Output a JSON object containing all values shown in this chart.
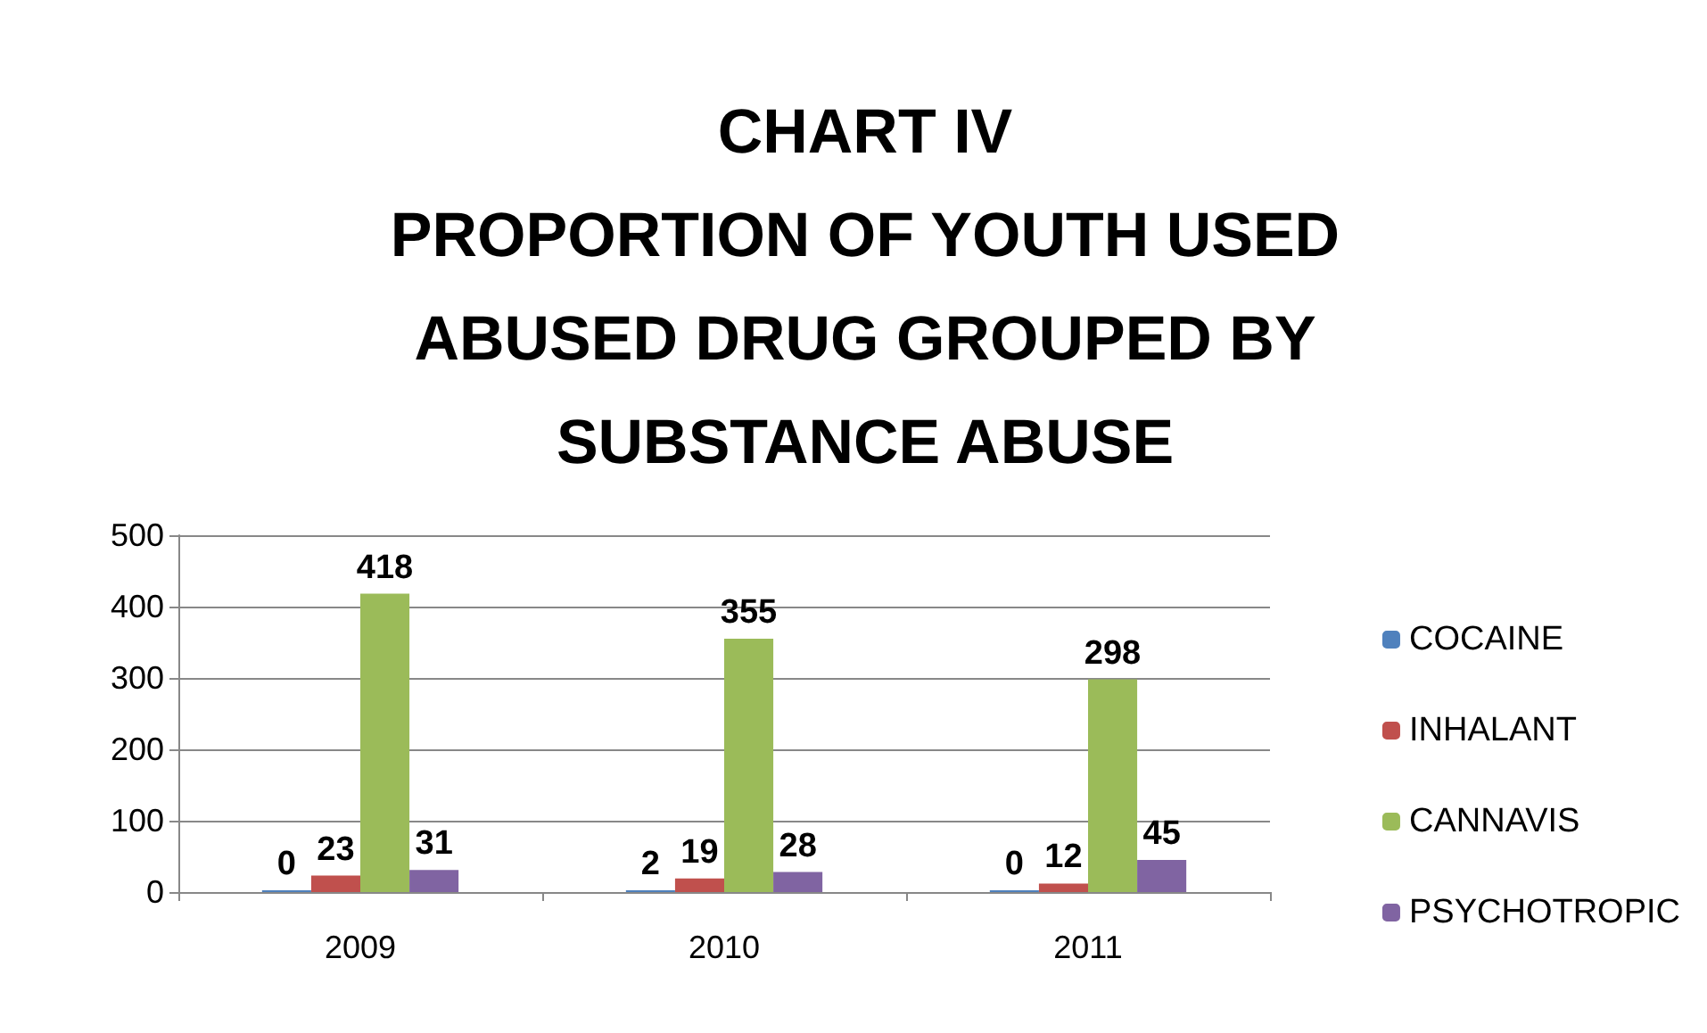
{
  "chart_data": {
    "type": "bar",
    "title": "CHART IV\nPROPORTION OF YOUTH USED\nABUSED DRUG GROUPED BY\nSUBSTANCE ABUSE",
    "categories": [
      "2009",
      "2010",
      "2011"
    ],
    "series": [
      {
        "name": "COCAINE",
        "color": "#4f81bd",
        "values": [
          0,
          2,
          0
        ]
      },
      {
        "name": "INHALANT",
        "color": "#c0504d",
        "values": [
          23,
          19,
          12
        ]
      },
      {
        "name": "CANNAVIS",
        "color": "#9bbb59",
        "values": [
          418,
          355,
          298
        ]
      },
      {
        "name": "PSYCHOTROPIC",
        "color": "#8064a2",
        "values": [
          31,
          28,
          45
        ]
      }
    ],
    "ylim": [
      0,
      500
    ],
    "yticks": [
      0,
      100,
      200,
      300,
      400,
      500
    ],
    "grid": "y",
    "legend": "right",
    "data_labels": true
  }
}
